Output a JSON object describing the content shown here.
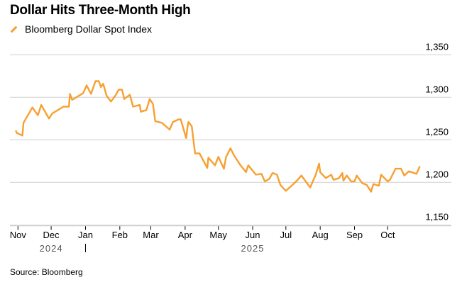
{
  "chart_data": {
    "type": "line",
    "title": "Dollar Hits Three-Month High",
    "source": "Source: Bloomberg",
    "series": [
      {
        "name": "Bloomberg Dollar Spot Index",
        "color": "#f7a031",
        "points": [
          [
            "2024-10-30",
            1261
          ],
          [
            "2024-10-31",
            1258
          ],
          [
            "2024-11-05",
            1255
          ],
          [
            "2024-11-06",
            1270
          ],
          [
            "2024-11-14",
            1288
          ],
          [
            "2024-11-19",
            1279
          ],
          [
            "2024-11-22",
            1291
          ],
          [
            "2024-11-29",
            1275
          ],
          [
            "2024-12-02",
            1281
          ],
          [
            "2024-12-12",
            1289
          ],
          [
            "2024-12-17",
            1289
          ],
          [
            "2024-12-18",
            1304
          ],
          [
            "2024-12-20",
            1297
          ],
          [
            "2024-12-30",
            1305
          ],
          [
            "2025-01-02",
            1314
          ],
          [
            "2025-01-06",
            1304
          ],
          [
            "2025-01-10",
            1319
          ],
          [
            "2025-01-13",
            1319
          ],
          [
            "2025-01-15",
            1312
          ],
          [
            "2025-01-17",
            1316
          ],
          [
            "2025-01-20",
            1302
          ],
          [
            "2025-01-24",
            1295
          ],
          [
            "2025-01-28",
            1302
          ],
          [
            "2025-01-31",
            1309
          ],
          [
            "2025-02-03",
            1309
          ],
          [
            "2025-02-05",
            1298
          ],
          [
            "2025-02-10",
            1303
          ],
          [
            "2025-02-13",
            1289
          ],
          [
            "2025-02-19",
            1291
          ],
          [
            "2025-02-20",
            1283
          ],
          [
            "2025-02-25",
            1285
          ],
          [
            "2025-02-28",
            1298
          ],
          [
            "2025-03-03",
            1292
          ],
          [
            "2025-03-05",
            1272
          ],
          [
            "2025-03-11",
            1270
          ],
          [
            "2025-03-18",
            1262
          ],
          [
            "2025-03-21",
            1271
          ],
          [
            "2025-03-26",
            1274
          ],
          [
            "2025-03-28",
            1274
          ],
          [
            "2025-04-02",
            1252
          ],
          [
            "2025-04-03",
            1264
          ],
          [
            "2025-04-04",
            1271
          ],
          [
            "2025-04-07",
            1266
          ],
          [
            "2025-04-10",
            1234
          ],
          [
            "2025-04-14",
            1234
          ],
          [
            "2025-04-21",
            1217
          ],
          [
            "2025-04-22",
            1229
          ],
          [
            "2025-04-28",
            1220
          ],
          [
            "2025-05-01",
            1230
          ],
          [
            "2025-05-06",
            1216
          ],
          [
            "2025-05-08",
            1230
          ],
          [
            "2025-05-12",
            1240
          ],
          [
            "2025-05-15",
            1232
          ],
          [
            "2025-05-21",
            1220
          ],
          [
            "2025-05-26",
            1212
          ],
          [
            "2025-05-28",
            1220
          ],
          [
            "2025-06-04",
            1209
          ],
          [
            "2025-06-09",
            1210
          ],
          [
            "2025-06-12",
            1201
          ],
          [
            "2025-06-16",
            1204
          ],
          [
            "2025-06-19",
            1211
          ],
          [
            "2025-06-23",
            1209
          ],
          [
            "2025-06-26",
            1197
          ],
          [
            "2025-07-01",
            1190
          ],
          [
            "2025-07-07",
            1197
          ],
          [
            "2025-07-11",
            1202
          ],
          [
            "2025-07-15",
            1208
          ],
          [
            "2025-07-23",
            1194
          ],
          [
            "2025-07-28",
            1209
          ],
          [
            "2025-07-31",
            1222
          ],
          [
            "2025-08-01",
            1212
          ],
          [
            "2025-08-06",
            1205
          ],
          [
            "2025-08-11",
            1209
          ],
          [
            "2025-08-13",
            1203
          ],
          [
            "2025-08-18",
            1205
          ],
          [
            "2025-08-21",
            1211
          ],
          [
            "2025-08-22",
            1202
          ],
          [
            "2025-08-25",
            1208
          ],
          [
            "2025-08-29",
            1201
          ],
          [
            "2025-09-01",
            1201
          ],
          [
            "2025-09-03",
            1208
          ],
          [
            "2025-09-08",
            1199
          ],
          [
            "2025-09-12",
            1197
          ],
          [
            "2025-09-16",
            1189
          ],
          [
            "2025-09-18",
            1198
          ],
          [
            "2025-09-23",
            1196
          ],
          [
            "2025-09-25",
            1209
          ],
          [
            "2025-10-01",
            1201
          ],
          [
            "2025-10-03",
            1203
          ],
          [
            "2025-10-08",
            1216
          ],
          [
            "2025-10-13",
            1216
          ],
          [
            "2025-10-16",
            1208
          ],
          [
            "2025-10-20",
            1213
          ],
          [
            "2025-10-27",
            1210
          ],
          [
            "2025-10-30",
            1219
          ]
        ]
      }
    ],
    "ylim": [
      1150,
      1350
    ],
    "yticks": [
      1350,
      1300,
      1250,
      1200,
      1150
    ],
    "ytick_labels": [
      "1,350",
      "1,300",
      "1,250",
      "1,200",
      "1,150"
    ],
    "y_axis_side": "right",
    "grid": true,
    "legend": "top-left",
    "xticks": [
      {
        "date": "2024-11-01",
        "label": "Nov"
      },
      {
        "date": "2024-12-01",
        "label": "Dec"
      },
      {
        "date": "2025-01-01",
        "label": "Jan"
      },
      {
        "date": "2025-02-01",
        "label": "Feb"
      },
      {
        "date": "2025-03-01",
        "label": "Mar"
      },
      {
        "date": "2025-04-01",
        "label": "Apr"
      },
      {
        "date": "2025-05-01",
        "label": "May"
      },
      {
        "date": "2025-06-01",
        "label": "Jun"
      },
      {
        "date": "2025-07-01",
        "label": "Jul"
      },
      {
        "date": "2025-08-01",
        "label": "Aug"
      },
      {
        "date": "2025-09-01",
        "label": "Sep"
      },
      {
        "date": "2025-10-01",
        "label": "Oct"
      }
    ],
    "year_labels": [
      {
        "date": "2024-12-01",
        "label": "2024"
      },
      {
        "date": "2025-06-01",
        "label": "2025"
      }
    ]
  }
}
